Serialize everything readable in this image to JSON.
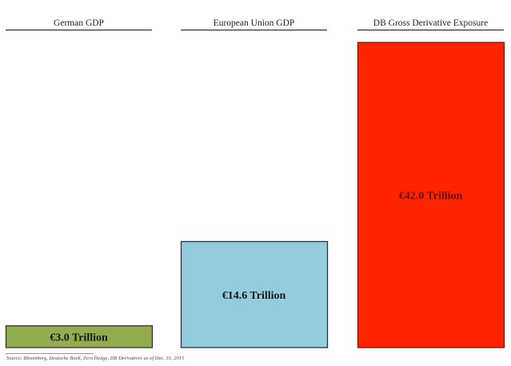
{
  "chart_data": {
    "type": "bar",
    "categories": [
      "German GDP",
      "European Union GDP",
      "DB Gross Derivative Exposure"
    ],
    "values": [
      3.0,
      14.6,
      42.0
    ],
    "data_labels": [
      "€3.0 Trillion",
      "€14.6 Trillion",
      "€42.0 Trillion"
    ],
    "colors": [
      "#92ad4f",
      "#93cddd",
      "#ff2400"
    ],
    "border_colors": [
      "#333333",
      "#333333",
      "#7a1a10"
    ],
    "unit": "€ Trillion",
    "ylim": [
      0,
      42
    ],
    "grid": false,
    "legend": "none"
  },
  "source": "Source: Bloomberg, Deutsche Bank, Zero Hedge, DB Derivatives as of Dec. 31, 2015"
}
